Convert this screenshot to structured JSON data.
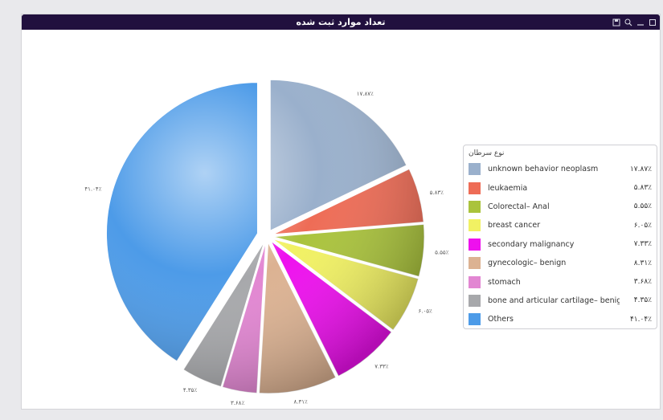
{
  "window": {
    "title": "تعداد موارد ثبت شده",
    "tools": [
      "save-icon",
      "zoom-icon",
      "minimize-icon",
      "maximize-icon"
    ]
  },
  "chart_data": {
    "type": "pie",
    "legend_title": "نوع سرطان",
    "legend_position": "right",
    "slices": [
      {
        "name": "unknown behavior neoplasm",
        "value": 17.87,
        "percent_label": "۱۷.۸۷٪",
        "data_label": "۱۷.۸۷٪",
        "color": "#9ab0cc"
      },
      {
        "name": "leukaemia",
        "value": 5.83,
        "percent_label": "۵.۸۳٪",
        "data_label": "۵.۸۳٪",
        "color": "#ee6c56"
      },
      {
        "name": "Colorectal– Anal",
        "value": 5.55,
        "percent_label": "۵.۵۵٪",
        "data_label": "۵.۵۵٪",
        "color": "#aac33c"
      },
      {
        "name": "breast cancer",
        "value": 6.05,
        "percent_label": "۶.۰۵٪",
        "data_label": "۶.۰۵٪",
        "color": "#f1f163"
      },
      {
        "name": "secondary malignancy",
        "value": 7.33,
        "percent_label": "۷.۳۳٪",
        "data_label": "۷.۳۳٪",
        "color": "#ee10ee"
      },
      {
        "name": "gynecologic– benign",
        "value": 8.31,
        "percent_label": "۸.۳۱٪",
        "data_label": "۸.۳۱٪",
        "color": "#dcb292"
      },
      {
        "name": "stomach",
        "value": 3.68,
        "percent_label": "۳.۶۸٪",
        "data_label": "۳.۶۸٪",
        "color": "#e286d2"
      },
      {
        "name": "bone and articular cartilage– benign",
        "value": 4.35,
        "percent_label": "۴.۳۵٪",
        "data_label": "۴.۳۵٪",
        "color": "#a7a8ab"
      },
      {
        "name": "Others",
        "value": 41.04,
        "percent_label": "۴۱.۰۴٪",
        "data_label": "۴۱.۰۴٪",
        "color": "#4d9be8"
      }
    ]
  }
}
